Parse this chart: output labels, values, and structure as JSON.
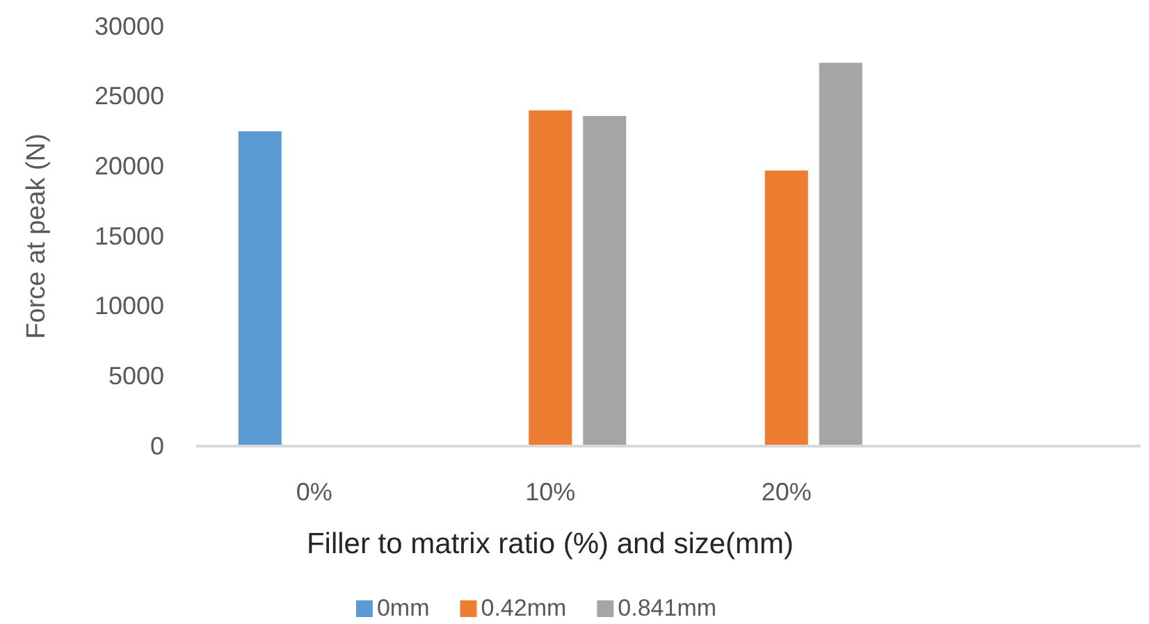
{
  "chart_data": {
    "type": "bar",
    "xlabel": "Filler to matrix ratio (%) and size(mm)",
    "ylabel": "Force at peak (N)",
    "categories": [
      "0%",
      "10%",
      "20%",
      null
    ],
    "series": [
      {
        "name": "0mm",
        "color": "#5b9bd5",
        "values": [
          22500,
          null,
          null,
          null
        ]
      },
      {
        "name": "0.42mm",
        "color": "#ed7d31",
        "values": [
          null,
          24000,
          19700,
          null
        ]
      },
      {
        "name": "0.841mm",
        "color": "#a5a5a5",
        "values": [
          null,
          23600,
          27400,
          null
        ]
      }
    ],
    "ylim": [
      0,
      30000
    ],
    "yticks": [
      0,
      5000,
      10000,
      15000,
      20000,
      25000,
      30000
    ],
    "grid": false,
    "legend": "bottom"
  }
}
